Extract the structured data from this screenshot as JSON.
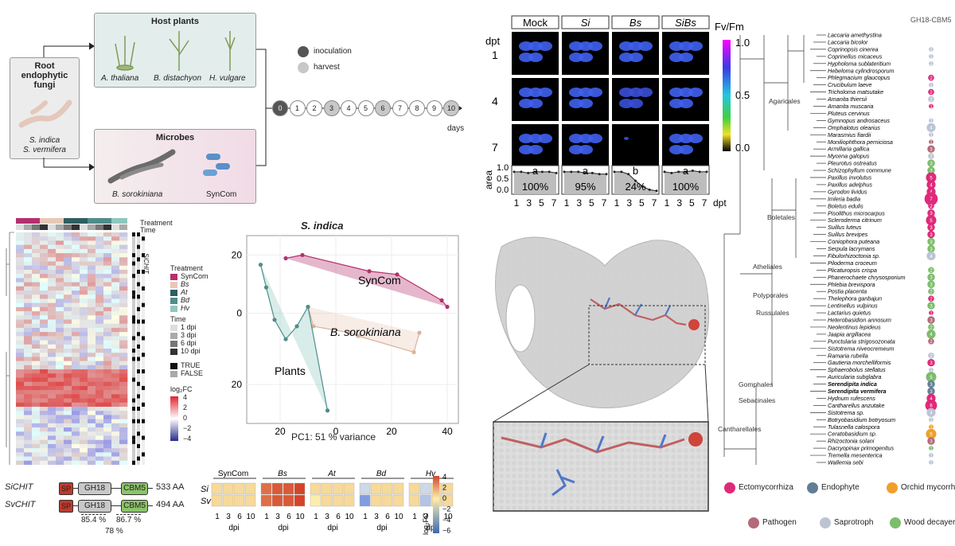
{
  "panel_a": {
    "root_title": "Root endophytic fungi",
    "root_species": [
      "S. indica",
      "S. vermifera"
    ],
    "host_title": "Host plants",
    "hosts": [
      "A. thaliana",
      "B. distachyon",
      "H. vulgare"
    ],
    "microbes_title": "Microbes",
    "microbes": [
      "B. sorokiniana",
      "SynCom"
    ],
    "legend_inoculation": "inoculation",
    "legend_harvest": "harvest",
    "days": [
      "0",
      "1",
      "2",
      "3",
      "4",
      "5",
      "6",
      "7",
      "8",
      "9",
      "10"
    ],
    "days_label": "days",
    "colors": {
      "host_bg": "#e3eeec",
      "microbe_bg": "#f3e4ec",
      "root_bg": "#ececec",
      "inoc": "#555555",
      "harvest": "#c8c8c8"
    }
  },
  "panel_heatmap": {
    "header_treatment": "Treatment",
    "header_time": "Time",
    "side_label": "SiCHIT",
    "legend_treatment_title": "Treatment",
    "legend_treatments": [
      "SynCom",
      "Bs",
      "At",
      "Bd",
      "Hv"
    ],
    "legend_treatment_colors": [
      "#b5306e",
      "#e8c8b8",
      "#2f5f5f",
      "#4e8e8a",
      "#8ec8c0"
    ],
    "legend_time_title": "Time",
    "legend_times": [
      "1 dpi",
      "3 dpi",
      "6 dpi",
      "10 dpi"
    ],
    "legend_bool": [
      "TRUE",
      "FALSE"
    ],
    "legend_scale_title": "log₂FC",
    "legend_scale_ticks": [
      "4",
      "2",
      "0",
      "−2",
      "−4"
    ]
  },
  "panel_pca": {
    "title": "S. indica",
    "xlabel": "PC1: 51 % variance",
    "group_labels": [
      "SynCom",
      "B. sorokiniana",
      "Plants"
    ]
  },
  "chart_data": [
    {
      "type": "scatter",
      "title": "S. indica",
      "xlabel": "PC1: 51 % variance",
      "ylabel": "",
      "xticks": [
        "20",
        "0",
        "20",
        "40"
      ],
      "yticks": [
        "20",
        "0",
        "20"
      ],
      "series": [
        {
          "name": "SynCom",
          "color": "#b5306e",
          "x": [
            -18,
            -12,
            12,
            22,
            38,
            40
          ],
          "y": [
            17,
            18,
            13,
            12,
            4,
            2
          ]
        },
        {
          "name": "B. sorokiniana",
          "color": "#d9b39a",
          "x": [
            -10,
            -8,
            5,
            8,
            28,
            30
          ],
          "y": [
            2,
            -4,
            -6,
            -7,
            -12,
            -6
          ]
        },
        {
          "name": "Plants",
          "color": "#4e8e8a",
          "x": [
            -27,
            -25,
            -22,
            -18,
            -14,
            -10,
            -3
          ],
          "y": [
            15,
            8,
            -2,
            -8,
            -4,
            2,
            -30
          ]
        }
      ]
    },
    {
      "type": "heatmap",
      "title": "",
      "row_labels": [
        "Si",
        "Sv"
      ],
      "groups": [
        "SynCom",
        "Bs",
        "At",
        "Bd",
        "Hv"
      ],
      "columns": [
        "1",
        "3",
        "6",
        "10"
      ],
      "xlabel": "dpi",
      "values": [
        [
          [
            0.5,
            0.5,
            0.5,
            0.5
          ],
          [
            3,
            3.5,
            3.5,
            4
          ],
          [
            0.5,
            0.5,
            0.5,
            0.5
          ],
          [
            -1,
            0.5,
            0.5,
            0.5
          ],
          [
            0.5,
            -1,
            0.5,
            0.5
          ]
        ],
        [
          [
            0.5,
            0.5,
            0.5,
            0.5
          ],
          [
            3,
            3.5,
            3.5,
            4
          ],
          [
            0,
            0.5,
            0.5,
            0.5
          ],
          [
            -4,
            0.5,
            0.5,
            0.5
          ],
          [
            0.5,
            -2,
            0.5,
            0.5
          ]
        ]
      ],
      "scale_title": "log₂FC",
      "scale_ticks": [
        "4",
        "2",
        "0",
        "−2",
        "−4",
        "−6"
      ]
    },
    {
      "type": "line",
      "title": "area",
      "xlabel": "dpt",
      "x_ticks": [
        "1",
        "3",
        "5",
        "7"
      ],
      "y_ticks": [
        "1.0",
        "0.5",
        "0.0"
      ],
      "panels": [
        {
          "name": "Mock",
          "letter": "a",
          "percent": "100%",
          "y": [
            1.0,
            1.0,
            0.95,
            1.0,
            1.0,
            1.0,
            0.95
          ]
        },
        {
          "name": "Si",
          "letter": "a",
          "percent": "95%",
          "y": [
            1.0,
            1.0,
            1.0,
            0.95,
            0.95,
            0.9,
            0.9
          ]
        },
        {
          "name": "Bs",
          "letter": "b",
          "percent": "24%",
          "y": [
            1.0,
            1.0,
            0.9,
            0.6,
            0.35,
            0.2,
            0.15
          ]
        },
        {
          "name": "SiBs",
          "letter": "a",
          "percent": "100%",
          "y": [
            1.0,
            0.95,
            1.0,
            1.0,
            1.05,
            1.0,
            1.0
          ]
        }
      ]
    }
  ],
  "panel_domains": {
    "rows": [
      {
        "name": "SiCHIT",
        "length": "533 AA"
      },
      {
        "name": "SvCHIT",
        "length": "494 AA"
      }
    ],
    "domains": [
      "SP",
      "GH18",
      "CBM5"
    ],
    "identity": [
      "85.4 %",
      "86.7 %",
      "78 %"
    ]
  },
  "panel_imaging": {
    "conditions": [
      "Mock",
      "Si",
      "Bs",
      "SiBs"
    ],
    "dpt_label": "dpt",
    "dpt_values": [
      "1",
      "4",
      "7"
    ],
    "scale_title": "Fv/Fm",
    "scale_ticks": [
      "1.0",
      "0.5",
      "0.0"
    ]
  },
  "panel_tree": {
    "title": "GH18-CBM5",
    "clades": [
      "Agaricales",
      "Boletales",
      "Atheliales",
      "Polyporales",
      "Russulales",
      "Gomphales",
      "Sebacinales",
      "Cantharellales"
    ],
    "species": [
      "Laccaria amethystina",
      "Laccaria bicolor",
      "Coprinopsis cinerea",
      "Coprinellus micaceus",
      "Hypholoma sublateritium",
      "Hebeloma cylindrosporum",
      "Phlegmacium glaucopus",
      "Crucibulum laeve",
      "Tricholoma matsutake",
      "Amanita thiersii",
      "Amanita muscaria",
      "Pluteus cervinus",
      "Gymnopus androsaceus",
      "Omphalotus olearius",
      "Marasmius fiardii",
      "Moniliophthora perniciosa",
      "Armillaria gallica",
      "Mycena galopus",
      "Pleurotus ostreatus",
      "Schizophyllum commune",
      "Paxillus involutus",
      "Paxillus adelphus",
      "Gyrodon lividus",
      "Imleria badia",
      "Boletus edulis",
      "Pisolithus microcarpus",
      "Scleroderma citrinum",
      "Suillus luteus",
      "Suillus brevipes",
      "Coniophora puteana",
      "Serpula lacrymans",
      "Fibulorhizoctonia sp.",
      "Piloderma croceum",
      "Plicaturopsis crispa",
      "Phanerochaete chrysosporium",
      "Phlebia brevispora",
      "Postia placenta",
      "Thelephora ganbajun",
      "Lentinellus vulpinus",
      "Lactarius quietus",
      "Heterobasidion annosum",
      "Neolentinus lepideus",
      "Jaapia argillacea",
      "Punctularia strigosozonata",
      "Sistotrema niveocremeum",
      "Ramaria rubella",
      "Gautieria morchelliformis",
      "Sphaerobolus stellatus",
      "Auricularia subglabra",
      "Serendipita indica",
      "Serendipita vermifera",
      "Hydnum rufescens",
      "Cantharellus anzutake",
      "Sistotrema sp.",
      "Botryobasidium botryosum",
      "Tulasnella calospora",
      "Ceratobasidium sp.",
      "Rhizoctonia solani",
      "Dacryopinax primogenitus",
      "Tremella mesenterica",
      "Wallemia sebi"
    ],
    "counts": [
      "",
      "",
      "1",
      "1",
      "1",
      "",
      "2",
      "1",
      "2",
      "2",
      "1",
      "",
      "1",
      "4",
      "1",
      "1",
      "3",
      "2",
      "3",
      "3",
      "5",
      "4",
      "4",
      "7",
      "2",
      "3",
      "5",
      "3",
      "3",
      "3",
      "3",
      "4",
      "",
      "2",
      "3",
      "3",
      "2",
      "2",
      "3",
      "1",
      "3",
      "2",
      "4",
      "2",
      "",
      "2",
      "3",
      "1",
      "5",
      "3",
      "3",
      "4",
      "6",
      "4",
      "1",
      "1",
      "5",
      "3",
      "1",
      "1",
      "1"
    ],
    "count_colors": [
      "#bcc4d4",
      "#bcc4d4",
      "#bcc4d4",
      "#bcc4d4",
      "#bcc4d4",
      "#bcc4d4",
      "#e0297a",
      "#bcc4d4",
      "#e0297a",
      "#bcc4d4",
      "#e0297a",
      "#bcc4d4",
      "#bcc4d4",
      "#bcc4d4",
      "#bcc4d4",
      "#b36a7a",
      "#b36a7a",
      "#bcc4d4",
      "#7cbd6a",
      "#7cbd6a",
      "#e0297a",
      "#e0297a",
      "#e0297a",
      "#e0297a",
      "#e0297a",
      "#e0297a",
      "#e0297a",
      "#e0297a",
      "#e0297a",
      "#7cbd6a",
      "#7cbd6a",
      "#bcc4d4",
      "#e0297a",
      "#7cbd6a",
      "#7cbd6a",
      "#7cbd6a",
      "#7cbd6a",
      "#e0297a",
      "#7cbd6a",
      "#e0297a",
      "#b36a7a",
      "#7cbd6a",
      "#7cbd6a",
      "#b36a7a",
      "#bcc4d4",
      "#bcc4d4",
      "#e0297a",
      "#bcc4d4",
      "#7cbd6a",
      "#627e96",
      "#627e96",
      "#e0297a",
      "#e0297a",
      "#bcc4d4",
      "#bcc4d4",
      "#f0a02a",
      "#f0a02a",
      "#b36a7a",
      "#7cbd6a",
      "#bcc4d4",
      "#bcc4d4"
    ],
    "legend": [
      "Ectomycorrhiza",
      "Endophyte",
      "Orchid mycorrhiza",
      "Pathogen",
      "Saprotroph",
      "Wood decayer"
    ],
    "legend_colors": [
      "#e0297a",
      "#627e96",
      "#f0a02a",
      "#b36a7a",
      "#bcc4d4",
      "#7cbd6a"
    ]
  }
}
